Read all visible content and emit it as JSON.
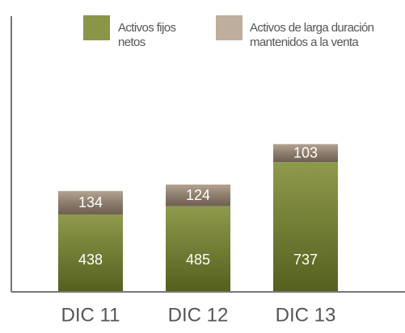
{
  "chart_data": {
    "type": "stacked_bar",
    "categories": [
      "DIC 11",
      "DIC 12",
      "DIC 13"
    ],
    "series": [
      {
        "name": "Activos fijos netos",
        "color": "#8a9548",
        "values": [
          438,
          485,
          737
        ]
      },
      {
        "name": "Activos de larga duración mantenidos a la venta",
        "color": "#8d7d6d",
        "values": [
          134,
          124,
          103
        ]
      }
    ]
  }
}
